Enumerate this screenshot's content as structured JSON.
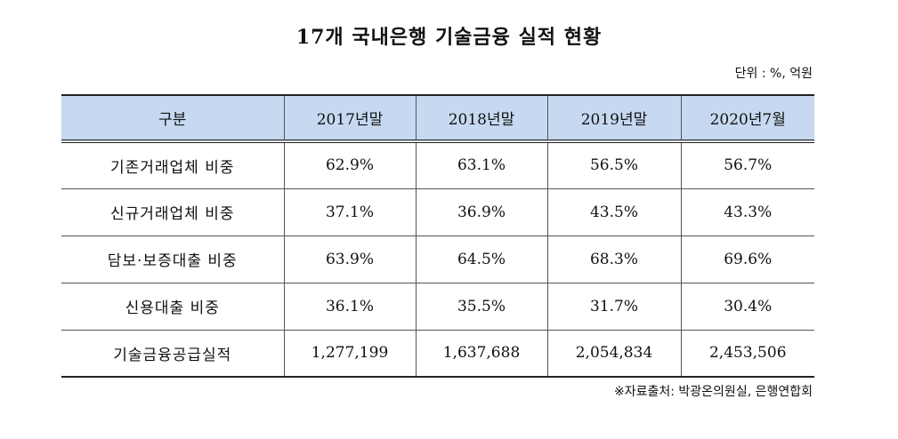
{
  "title": "17개 국내은행 기술금융 실적 현황",
  "unit": "단위 : %, 억원",
  "table": {
    "headers": [
      "구분",
      "2017년말",
      "2018년말",
      "2019년말",
      "2020년7월"
    ],
    "rows": [
      {
        "label": "기존거래업체 비중",
        "values": [
          "62.9%",
          "63.1%",
          "56.5%",
          "56.7%"
        ]
      },
      {
        "label": "신규거래업체 비중",
        "values": [
          "37.1%",
          "36.9%",
          "43.5%",
          "43.3%"
        ]
      },
      {
        "label": "담보·보증대출 비중",
        "values": [
          "63.9%",
          "64.5%",
          "68.3%",
          "69.6%"
        ]
      },
      {
        "label": "신용대출 비중",
        "values": [
          "36.1%",
          "35.5%",
          "31.7%",
          "30.4%"
        ]
      },
      {
        "label": "기술금융공급실적",
        "values": [
          "1,277,199",
          "1,637,688",
          "2,054,834",
          "2,453,506"
        ]
      }
    ]
  },
  "source": "※자료출처: 박광온의원실, 은행연합회",
  "colors": {
    "header_background": "#c6d9f1",
    "border": "#222222"
  }
}
